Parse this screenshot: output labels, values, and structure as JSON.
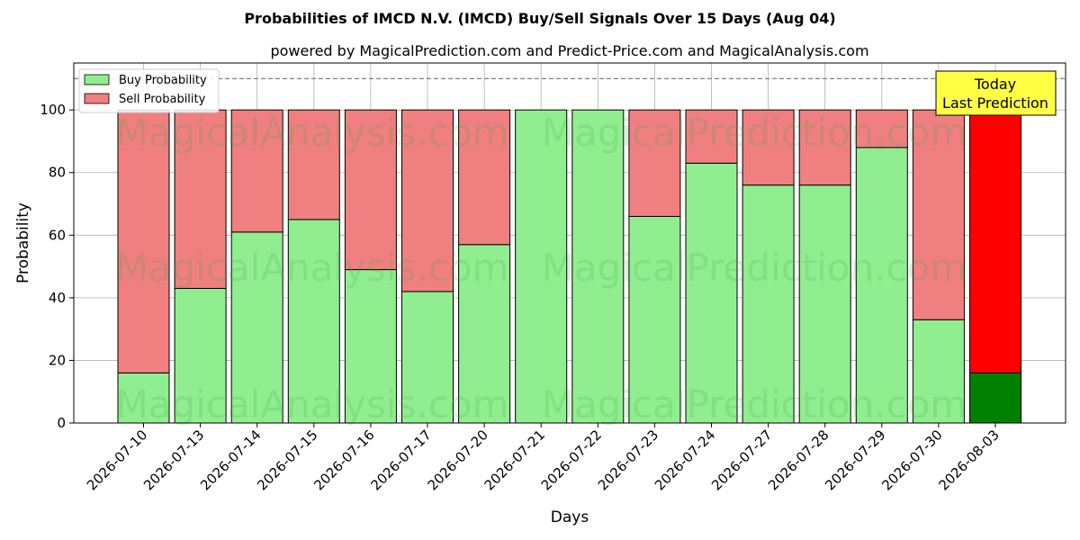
{
  "chart_data": {
    "type": "bar",
    "stacked": true,
    "title": "Probabilities of IMCD N.V. (IMCD) Buy/Sell Signals Over 15 Days (Aug 04)",
    "subtitle": "powered by MagicalPrediction.com and Predict-Price.com and MagicalAnalysis.com",
    "xlabel": "Days",
    "ylabel": "Probability",
    "ylim": [
      0,
      115
    ],
    "yticks": [
      0,
      20,
      40,
      60,
      80,
      100
    ],
    "grid": true,
    "legend_position": "top-left",
    "reference_line": 110,
    "categories": [
      "2026-07-10",
      "2026-07-13",
      "2026-07-14",
      "2026-07-15",
      "2026-07-16",
      "2026-07-17",
      "2026-07-20",
      "2026-07-21",
      "2026-07-22",
      "2026-07-23",
      "2026-07-24",
      "2026-07-27",
      "2026-07-28",
      "2026-07-29",
      "2026-07-30",
      "2026-08-03"
    ],
    "series": [
      {
        "name": "Buy Probability",
        "color": "#90ee90",
        "values": [
          16,
          43,
          61,
          65,
          49,
          42,
          57,
          100,
          100,
          66,
          83,
          76,
          76,
          88,
          33,
          16
        ]
      },
      {
        "name": "Sell Probability",
        "color": "#f08080",
        "values": [
          84,
          57,
          39,
          35,
          51,
          58,
          43,
          0,
          0,
          34,
          17,
          24,
          24,
          12,
          67,
          84
        ]
      }
    ],
    "highlight": {
      "index": 15,
      "buy_color": "#008000",
      "sell_color": "#ff0000"
    },
    "annotation": {
      "line1": "Today",
      "line2": "Last Prediction",
      "background": "#ffff44"
    },
    "watermarks": [
      "MagicalAnalysis.com",
      "MagicalPrediction.com"
    ]
  }
}
